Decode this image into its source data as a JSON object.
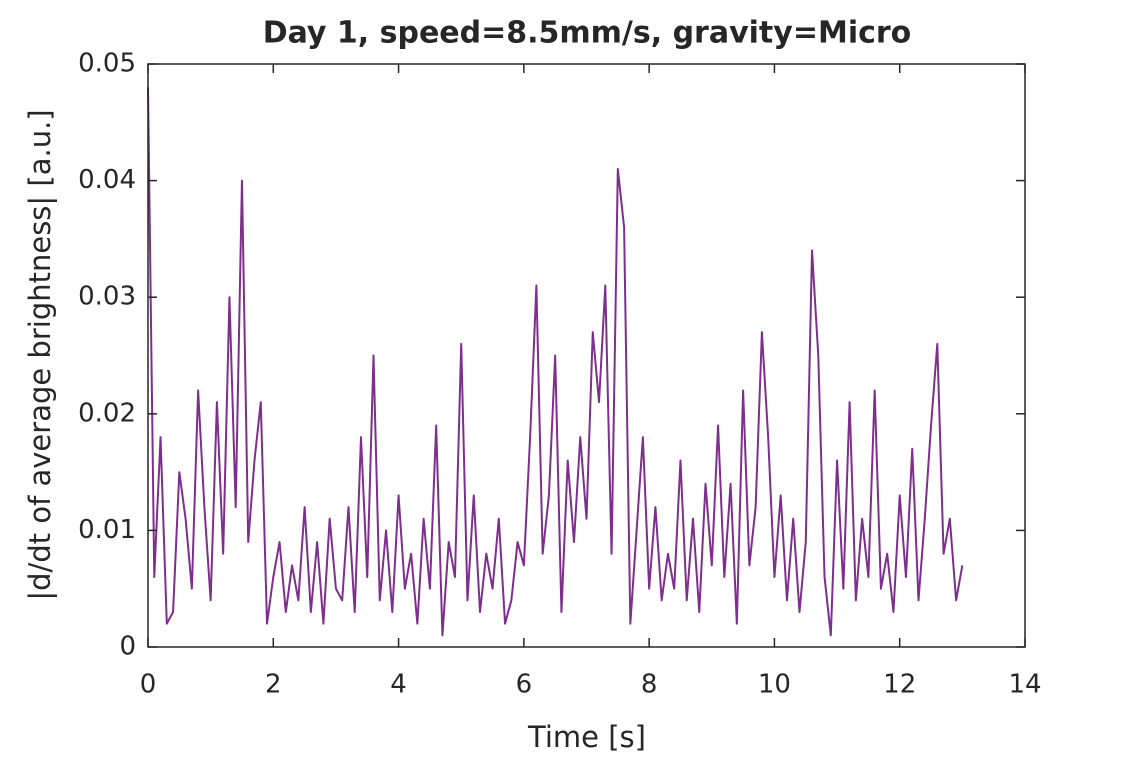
{
  "chart_data": {
    "type": "line",
    "title": "Day 1, speed=8.5mm/s, gravity=Micro",
    "xlabel": "Time [s]",
    "ylabel": "|d/dt of average brightness| [a.u.]",
    "x": [
      0.0,
      0.1,
      0.2,
      0.3,
      0.4,
      0.5,
      0.6,
      0.7,
      0.8,
      0.9,
      1.0,
      1.1,
      1.2,
      1.3,
      1.4,
      1.5,
      1.6,
      1.7,
      1.8,
      1.9,
      2.0,
      2.1,
      2.2,
      2.3,
      2.4,
      2.5,
      2.6,
      2.7,
      2.8,
      2.9,
      3.0,
      3.1,
      3.2,
      3.3,
      3.4,
      3.5,
      3.6,
      3.7,
      3.8,
      3.9,
      4.0,
      4.1,
      4.2,
      4.3,
      4.4,
      4.5,
      4.6,
      4.7,
      4.8,
      4.9,
      5.0,
      5.1,
      5.2,
      5.3,
      5.4,
      5.5,
      5.6,
      5.7,
      5.8,
      5.9,
      6.0,
      6.1,
      6.2,
      6.3,
      6.4,
      6.5,
      6.6,
      6.7,
      6.8,
      6.9,
      7.0,
      7.1,
      7.2,
      7.3,
      7.4,
      7.5,
      7.6,
      7.7,
      7.8,
      7.9,
      8.0,
      8.1,
      8.2,
      8.3,
      8.4,
      8.5,
      8.6,
      8.7,
      8.8,
      8.9,
      9.0,
      9.1,
      9.2,
      9.3,
      9.4,
      9.5,
      9.6,
      9.7,
      9.8,
      9.9,
      10.0,
      10.1,
      10.2,
      10.3,
      10.4,
      10.5,
      10.6,
      10.7,
      10.8,
      10.9,
      11.0,
      11.1,
      11.2,
      11.3,
      11.4,
      11.5,
      11.6,
      11.7,
      11.8,
      11.9,
      12.0,
      12.1,
      12.2,
      12.3,
      12.4,
      12.5,
      12.6,
      12.7,
      12.8,
      12.9,
      13.0
    ],
    "series": [
      {
        "name": "brightness",
        "color": "#7e2f8e",
        "values": [
          0.048,
          0.006,
          0.018,
          0.002,
          0.003,
          0.015,
          0.011,
          0.005,
          0.022,
          0.012,
          0.004,
          0.021,
          0.008,
          0.03,
          0.012,
          0.04,
          0.009,
          0.016,
          0.021,
          0.002,
          0.006,
          0.009,
          0.003,
          0.007,
          0.004,
          0.012,
          0.003,
          0.009,
          0.002,
          0.011,
          0.005,
          0.004,
          0.012,
          0.003,
          0.018,
          0.006,
          0.025,
          0.004,
          0.01,
          0.003,
          0.013,
          0.005,
          0.008,
          0.002,
          0.011,
          0.005,
          0.019,
          0.001,
          0.009,
          0.006,
          0.026,
          0.004,
          0.013,
          0.003,
          0.008,
          0.005,
          0.011,
          0.002,
          0.004,
          0.009,
          0.007,
          0.018,
          0.031,
          0.008,
          0.013,
          0.025,
          0.003,
          0.016,
          0.009,
          0.018,
          0.011,
          0.027,
          0.021,
          0.031,
          0.008,
          0.041,
          0.036,
          0.002,
          0.01,
          0.018,
          0.005,
          0.012,
          0.004,
          0.008,
          0.005,
          0.016,
          0.004,
          0.011,
          0.003,
          0.014,
          0.007,
          0.019,
          0.006,
          0.014,
          0.002,
          0.022,
          0.007,
          0.012,
          0.027,
          0.018,
          0.006,
          0.013,
          0.004,
          0.011,
          0.003,
          0.009,
          0.034,
          0.025,
          0.006,
          0.001,
          0.016,
          0.005,
          0.021,
          0.004,
          0.011,
          0.006,
          0.022,
          0.005,
          0.008,
          0.003,
          0.013,
          0.006,
          0.017,
          0.004,
          0.011,
          0.019,
          0.026,
          0.008,
          0.011,
          0.004,
          0.007
        ]
      }
    ],
    "xlim": [
      0,
      14
    ],
    "xticks": [
      0,
      2,
      4,
      6,
      8,
      10,
      12,
      14
    ],
    "ylim": [
      0,
      0.05
    ],
    "yticks": [
      0,
      0.01,
      0.02,
      0.03,
      0.04,
      0.05
    ],
    "grid": false
  }
}
